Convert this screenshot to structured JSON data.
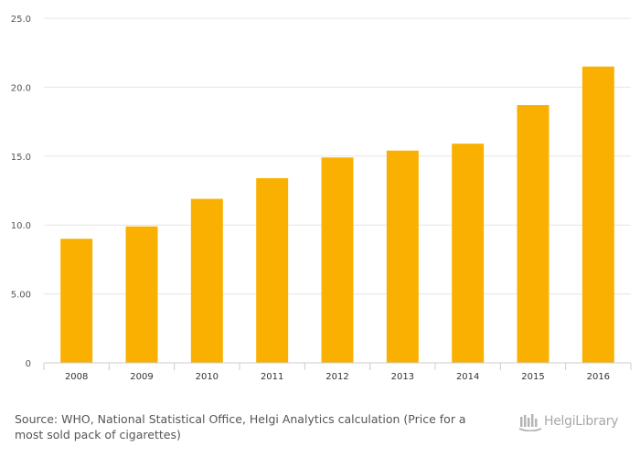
{
  "chart_data": {
    "type": "bar",
    "categories": [
      "2008",
      "2009",
      "2010",
      "2011",
      "2012",
      "2013",
      "2014",
      "2015",
      "2016"
    ],
    "values": [
      9.0,
      9.9,
      11.9,
      13.4,
      14.9,
      15.4,
      15.9,
      18.7,
      21.5
    ],
    "title": "",
    "xlabel": "",
    "ylabel": "",
    "ylim": [
      0,
      25
    ],
    "yticks": [
      0,
      5,
      10,
      15,
      20,
      25
    ],
    "ytick_labels": [
      "0",
      "5.00",
      "10.0",
      "15.0",
      "20.0",
      "25.0"
    ],
    "grid": true,
    "bar_color": "#f9b000"
  },
  "footer": {
    "source": "Source: WHO, National Statistical Office, Helgi Analytics calculation (Price for a most sold pack of cigarettes)"
  },
  "logo": {
    "text": "HelgiLibrary",
    "icon": "helgi-library-logo-icon"
  }
}
